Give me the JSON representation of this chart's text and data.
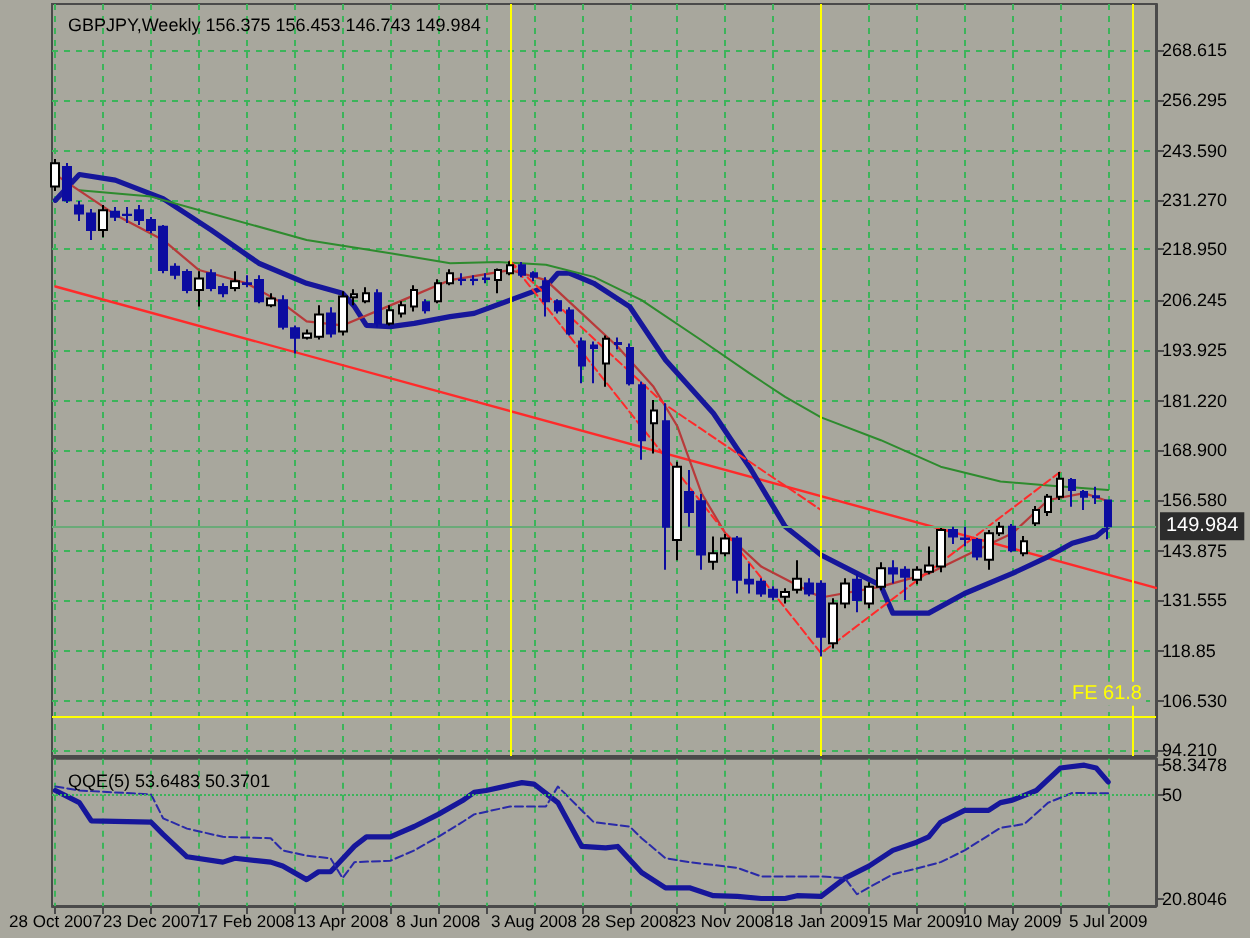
{
  "chart_data": [
    {
      "type": "candlestick",
      "title": "GBPJPY,Weekly 156.375 156.453 146.743 149.984",
      "x": [
        "2007-10-28",
        "2007-11-04",
        "2007-11-11",
        "2007-11-18",
        "2007-11-25",
        "2007-12-02",
        "2007-12-09",
        "2007-12-16",
        "2007-12-23",
        "2007-12-30",
        "2008-01-06",
        "2008-01-13",
        "2008-01-20",
        "2008-01-27",
        "2008-02-03",
        "2008-02-10",
        "2008-02-17",
        "2008-02-24",
        "2008-03-02",
        "2008-03-09",
        "2008-03-16",
        "2008-03-23",
        "2008-03-30",
        "2008-04-06",
        "2008-04-13",
        "2008-04-20",
        "2008-04-27",
        "2008-05-04",
        "2008-05-11",
        "2008-05-18",
        "2008-05-25",
        "2008-06-01",
        "2008-06-08",
        "2008-06-15",
        "2008-06-22",
        "2008-06-29",
        "2008-07-06",
        "2008-07-13",
        "2008-07-20",
        "2008-07-27",
        "2008-08-03",
        "2008-08-10",
        "2008-08-17",
        "2008-08-24",
        "2008-08-31",
        "2008-09-07",
        "2008-09-14",
        "2008-09-21",
        "2008-09-28",
        "2008-10-05",
        "2008-10-12",
        "2008-10-19",
        "2008-10-26",
        "2008-11-02",
        "2008-11-09",
        "2008-11-16",
        "2008-11-23",
        "2008-11-30",
        "2008-12-07",
        "2008-12-14",
        "2008-12-21",
        "2008-12-28",
        "2009-01-04",
        "2009-01-11",
        "2009-01-18",
        "2009-01-25",
        "2009-02-01",
        "2009-02-08",
        "2009-02-15",
        "2009-02-22",
        "2009-03-01",
        "2009-03-08",
        "2009-03-15",
        "2009-03-22",
        "2009-03-29",
        "2009-04-05",
        "2009-04-12",
        "2009-04-19",
        "2009-04-26",
        "2009-05-03",
        "2009-05-10",
        "2009-05-17",
        "2009-05-24",
        "2009-05-31",
        "2009-06-07",
        "2009-06-14",
        "2009-06-21",
        "2009-06-28",
        "2009-07-05"
      ],
      "ohlc": [
        [
          234.6,
          241.5,
          233.5,
          240.4
        ],
        [
          239.5,
          240.5,
          230.5,
          231.2
        ],
        [
          229.9,
          231.0,
          226.0,
          227.9
        ],
        [
          227.9,
          229.0,
          221.3,
          223.8
        ],
        [
          223.8,
          230.0,
          222.0,
          228.7
        ],
        [
          228.3,
          229.5,
          226.0,
          227.1
        ],
        [
          227.6,
          229.5,
          225.5,
          227.5
        ],
        [
          228.7,
          230.0,
          225.0,
          226.3
        ],
        [
          226.3,
          227.0,
          223.0,
          223.8
        ],
        [
          224.6,
          225.0,
          213.0,
          213.8
        ],
        [
          214.6,
          215.5,
          211.5,
          212.6
        ],
        [
          213.3,
          214.0,
          208.0,
          208.8
        ],
        [
          208.8,
          213.5,
          204.7,
          211.7
        ],
        [
          213.0,
          214.0,
          208.5,
          209.3
        ],
        [
          209.6,
          210.5,
          207.0,
          208.0
        ],
        [
          209.3,
          213.5,
          208.5,
          211.0
        ],
        [
          210.5,
          212.5,
          209.5,
          210.3
        ],
        [
          211.3,
          212.5,
          205.5,
          206.0
        ],
        [
          205.0,
          208.0,
          204.5,
          206.7
        ],
        [
          206.3,
          207.5,
          199.0,
          199.7
        ],
        [
          199.3,
          200.0,
          193.0,
          196.9
        ],
        [
          196.9,
          199.0,
          196.5,
          198.0
        ],
        [
          197.2,
          205.0,
          196.5,
          202.7
        ],
        [
          203.0,
          204.5,
          197.0,
          198.0
        ],
        [
          198.5,
          208.5,
          197.5,
          207.2
        ],
        [
          207.0,
          209.0,
          205.0,
          207.8
        ],
        [
          206.0,
          209.5,
          205.5,
          208.0
        ],
        [
          208.0,
          209.0,
          199.5,
          200.5
        ],
        [
          200.5,
          205.0,
          200.0,
          203.8
        ],
        [
          203.0,
          206.0,
          202.0,
          205.0
        ],
        [
          204.7,
          210.0,
          203.5,
          208.8
        ],
        [
          205.8,
          206.5,
          203.0,
          203.8
        ],
        [
          206.0,
          211.5,
          205.5,
          210.5
        ],
        [
          210.5,
          214.0,
          210.0,
          213.0
        ],
        [
          211.4,
          213.0,
          210.0,
          211.3
        ],
        [
          211.4,
          212.5,
          210.0,
          211.3
        ],
        [
          211.7,
          213.0,
          210.5,
          211.6
        ],
        [
          211.3,
          214.2,
          208.0,
          213.8
        ],
        [
          213.0,
          216.0,
          212.5,
          215.0
        ],
        [
          215.0,
          215.8,
          212.0,
          212.6
        ],
        [
          213.0,
          213.5,
          211.0,
          212.1
        ],
        [
          211.0,
          212.0,
          202.2,
          206.0
        ],
        [
          206.0,
          206.5,
          203.0,
          203.7
        ],
        [
          203.7,
          204.5,
          197.5,
          198.0
        ],
        [
          196.0,
          197.0,
          185.6,
          190.0
        ],
        [
          195.0,
          196.0,
          185.6,
          194.4
        ],
        [
          190.5,
          197.5,
          184.7,
          196.7
        ],
        [
          195.6,
          197.0,
          194.0,
          195.4
        ],
        [
          194.4,
          195.5,
          185.0,
          185.6
        ],
        [
          185.1,
          186.0,
          166.5,
          171.4
        ],
        [
          175.6,
          181.4,
          168.1,
          178.8
        ],
        [
          176.1,
          180.6,
          139.1,
          149.8
        ],
        [
          146.5,
          166.0,
          141.5,
          164.8
        ],
        [
          158.5,
          164.0,
          149.8,
          153.5
        ],
        [
          156.2,
          158.0,
          139.1,
          142.9
        ],
        [
          141.1,
          147.4,
          139.1,
          143.2
        ],
        [
          143.2,
          148.0,
          142.5,
          146.9
        ],
        [
          146.9,
          147.5,
          133.2,
          136.6
        ],
        [
          136.6,
          140.7,
          133.2,
          135.7
        ],
        [
          136.1,
          137.0,
          132.4,
          133.2
        ],
        [
          134.1,
          135.0,
          131.5,
          132.4
        ],
        [
          132.4,
          134.5,
          130.7,
          133.6
        ],
        [
          134.1,
          141.5,
          133.2,
          136.9
        ],
        [
          135.7,
          137.0,
          132.5,
          133.2
        ],
        [
          135.6,
          136.5,
          117.5,
          122.4
        ],
        [
          120.8,
          132.0,
          119.5,
          130.7
        ],
        [
          130.7,
          137.0,
          129.5,
          135.7
        ],
        [
          136.6,
          138.0,
          128.5,
          131.6
        ],
        [
          130.7,
          136.0,
          129.5,
          134.9
        ],
        [
          134.9,
          141.0,
          134.0,
          139.5
        ],
        [
          139.5,
          141.5,
          135.7,
          138.2
        ],
        [
          139.1,
          140.0,
          131.6,
          137.4
        ],
        [
          136.6,
          140.0,
          135.5,
          139.1
        ],
        [
          138.6,
          144.9,
          138.0,
          140.2
        ],
        [
          139.9,
          149.5,
          138.5,
          149.0
        ],
        [
          149.0,
          149.8,
          145.5,
          147.4
        ],
        [
          146.9,
          149.8,
          145.0,
          146.8
        ],
        [
          146.5,
          147.0,
          141.5,
          142.4
        ],
        [
          141.6,
          149.0,
          139.1,
          148.2
        ],
        [
          148.2,
          151.0,
          147.5,
          149.8
        ],
        [
          149.8,
          150.5,
          143.5,
          144.0
        ],
        [
          143.2,
          147.5,
          142.5,
          146.2
        ],
        [
          150.7,
          155.0,
          150.0,
          154.0
        ],
        [
          153.5,
          158.0,
          152.5,
          157.3
        ],
        [
          157.3,
          163.5,
          156.5,
          161.8
        ],
        [
          161.5,
          162.0,
          154.8,
          159.0
        ],
        [
          158.5,
          159.0,
          154.0,
          157.3
        ],
        [
          157.4,
          159.8,
          155.5,
          157.2
        ],
        [
          156.375,
          156.453,
          146.743,
          149.984
        ]
      ],
      "series": [
        {
          "type": "line",
          "color": "#ff2a2a",
          "x": [
            "2007-10-28",
            "2009-08-02"
          ],
          "values": [
            209.7,
            134.6
          ]
        },
        {
          "type": "line",
          "color": "#16169a",
          "x": [
            "2007-10-28",
            "2007-11-11",
            "2007-12-02",
            "2007-12-30",
            "2008-01-27",
            "2008-02-24",
            "2008-03-23",
            "2008-04-13",
            "2008-04-20",
            "2008-04-27",
            "2008-05-11",
            "2008-05-25",
            "2008-06-15",
            "2008-06-29",
            "2008-07-20",
            "2008-08-10",
            "2008-08-17",
            "2008-08-24",
            "2008-09-07",
            "2008-09-28",
            "2008-10-19",
            "2008-11-16",
            "2008-12-07",
            "2008-12-28",
            "2009-01-18",
            "2009-02-08",
            "2009-02-22",
            "2009-03-01",
            "2009-03-22",
            "2009-04-12",
            "2009-05-10",
            "2009-05-31",
            "2009-06-14",
            "2009-06-28",
            "2009-07-05"
          ],
          "values": [
            231.2,
            237.6,
            236.2,
            231.6,
            223.8,
            215.5,
            210.5,
            208.0,
            204.7,
            200.0,
            199.7,
            200.5,
            202.2,
            203.0,
            206.3,
            209.6,
            213.0,
            213.0,
            210.5,
            204.7,
            191.4,
            178.1,
            164.8,
            149.9,
            142.8,
            138.2,
            135.2,
            128.3,
            128.3,
            133.2,
            138.2,
            142.4,
            145.7,
            147.4,
            149.9
          ]
        },
        {
          "type": "line",
          "color": "#2e8b2e",
          "x": [
            "2007-11-11",
            "2007-12-23",
            "2008-01-27",
            "2008-03-23",
            "2008-05-11",
            "2008-06-15",
            "2008-07-13",
            "2008-08-10",
            "2008-09-07",
            "2008-10-05",
            "2008-11-09",
            "2008-12-07",
            "2008-12-28",
            "2009-01-18",
            "2009-02-22",
            "2009-03-29",
            "2009-05-03",
            "2009-05-31",
            "2009-07-05"
          ],
          "values": [
            233.7,
            232.1,
            227.9,
            221.3,
            218.0,
            215.5,
            215.8,
            215.1,
            212.1,
            206.3,
            196.3,
            188.1,
            182.2,
            177.1,
            171.4,
            164.8,
            161.1,
            160.1,
            159.0
          ]
        },
        {
          "type": "line",
          "color": "#b83a3a",
          "x": [
            "2007-10-28",
            "2007-12-02",
            "2007-12-30",
            "2008-01-20",
            "2008-02-17",
            "2008-03-09",
            "2008-03-23",
            "2008-04-13",
            "2008-05-11",
            "2008-06-15",
            "2008-07-20",
            "2008-08-10",
            "2008-08-31",
            "2008-09-21",
            "2008-10-12",
            "2008-10-26",
            "2008-11-09",
            "2008-11-23",
            "2008-12-14",
            "2009-01-18",
            "2009-02-22",
            "2009-03-22",
            "2009-04-19",
            "2009-05-10",
            "2009-05-31",
            "2009-06-21",
            "2009-07-05"
          ],
          "values": [
            237.6,
            227.6,
            221.3,
            213.8,
            210.5,
            205.5,
            201.0,
            200.0,
            205.0,
            211.3,
            213.8,
            211.3,
            203.0,
            194.7,
            184.7,
            174.8,
            158.2,
            148.2,
            139.9,
            132.2,
            134.9,
            138.2,
            144.0,
            148.2,
            156.5,
            158.2,
            156.2
          ]
        },
        {
          "type": "line",
          "color": "#ff2a2a",
          "line_style": "dashed",
          "x": [
            "2008-07-20",
            "2009-01-18",
            "2009-06-07"
          ],
          "values": [
            216.0,
            118.3,
            163.5
          ]
        },
        {
          "type": "line",
          "color": "#ff2a2a",
          "line_style": "dashed",
          "x": [
            "2008-07-20",
            "2008-10-19",
            "2009-01-18"
          ],
          "values": [
            216.0,
            180.2,
            154.0
          ]
        }
      ],
      "xlim": [
        "2007-10-26",
        "2009-08-02"
      ],
      "ylim": [
        92.7,
        280.1
      ],
      "xticks": [
        {
          "value": "2007-10-28",
          "label": null
        },
        {
          "value": "2007-11-25",
          "label": null
        },
        {
          "value": "2007-12-23",
          "label": null
        },
        {
          "value": "2008-01-20",
          "label": null
        },
        {
          "value": "2008-02-17",
          "label": null
        },
        {
          "value": "2008-03-16",
          "label": null
        },
        {
          "value": "2008-04-13",
          "label": null
        },
        {
          "value": "2008-05-11",
          "label": null
        },
        {
          "value": "2008-06-08",
          "label": null
        },
        {
          "value": "2008-07-06",
          "label": null
        },
        {
          "value": "2008-08-03",
          "label": null
        },
        {
          "value": "2008-08-31",
          "label": null
        },
        {
          "value": "2008-09-28",
          "label": null
        },
        {
          "value": "2008-10-26",
          "label": null
        },
        {
          "value": "2008-11-23",
          "label": null
        },
        {
          "value": "2008-12-21",
          "label": null
        },
        {
          "value": "2009-01-18",
          "label": null
        },
        {
          "value": "2009-02-15",
          "label": null
        },
        {
          "value": "2009-03-15",
          "label": null
        },
        {
          "value": "2009-04-12",
          "label": null
        },
        {
          "value": "2009-05-10",
          "label": null
        },
        {
          "value": "2009-06-07",
          "label": null
        },
        {
          "value": "2009-07-05",
          "label": null
        }
      ],
      "yticks": [
        {
          "value": 94.21,
          "label": "94.210"
        },
        {
          "value": 106.53,
          "label": "106.530"
        },
        118.85,
        131.555,
        143.875,
        {
          "value": 156.58,
          "label": "156.580"
        },
        {
          "value": 168.9,
          "label": "168.900"
        },
        {
          "value": 181.22,
          "label": "181.220"
        },
        193.925,
        206.245,
        {
          "value": 218.95,
          "label": "218.950"
        },
        {
          "value": 231.27,
          "label": "231.270"
        },
        {
          "value": 243.59,
          "label": "243.590"
        },
        256.295,
        268.615
      ],
      "tick_labels": "y",
      "grid": true,
      "ref_lines": [
        {
          "axis": "x",
          "value": "2008-07-20",
          "color": "#ffff00"
        },
        {
          "axis": "x",
          "value": "2009-01-18",
          "color": "#ffff00"
        },
        {
          "axis": "x",
          "value": "2009-07-19",
          "color": "#ffff00"
        },
        {
          "axis": "y",
          "value": 102.7,
          "label": "FE 61.8",
          "color": "#ffff00"
        },
        {
          "axis": "y",
          "value": 149.984,
          "label": "149.984",
          "color": "#6aaa78"
        }
      ]
    },
    {
      "type": "line",
      "title": "QQE(5) 53.6483 50.3701",
      "series": [
        {
          "color": "#16169a",
          "x": [
            "2007-10-28",
            "2007-11-11",
            "2007-11-18",
            "2007-12-23",
            "2007-12-30",
            "2008-01-13",
            "2008-02-03",
            "2008-02-10",
            "2008-03-02",
            "2008-03-09",
            "2008-03-23",
            "2008-03-30",
            "2008-04-06",
            "2008-04-20",
            "2008-04-27",
            "2008-05-11",
            "2008-05-25",
            "2008-06-08",
            "2008-06-22",
            "2008-06-29",
            "2008-07-06",
            "2008-07-27",
            "2008-08-03",
            "2008-08-17",
            "2008-08-31",
            "2008-09-14",
            "2008-09-21",
            "2008-10-05",
            "2008-10-19",
            "2008-11-02",
            "2008-11-16",
            "2008-11-30",
            "2008-12-14",
            "2008-12-28",
            "2009-01-04",
            "2009-01-18",
            "2009-02-01",
            "2009-02-15",
            "2009-03-01",
            "2009-03-15",
            "2009-03-22",
            "2009-03-29",
            "2009-04-12",
            "2009-04-26",
            "2009-05-03",
            "2009-05-10",
            "2009-05-24",
            "2009-06-07",
            "2009-06-21",
            "2009-06-28",
            "2009-07-05"
          ],
          "values": [
            51.2,
            47.8,
            42.7,
            42.3,
            38.9,
            32.6,
            31.1,
            32.2,
            31.1,
            30.0,
            26.2,
            28.4,
            28.4,
            35.6,
            38.2,
            38.2,
            41.1,
            44.5,
            48.3,
            50.7,
            51.2,
            53.4,
            53.0,
            47.8,
            35.5,
            35.1,
            35.5,
            28.2,
            23.9,
            23.9,
            21.7,
            21.5,
            20.9,
            20.9,
            21.7,
            21.5,
            26.6,
            30.0,
            34.4,
            36.7,
            38.2,
            42.3,
            45.6,
            45.6,
            47.8,
            48.5,
            51.2,
            57.5,
            58.3,
            57.5,
            53.6
          ]
        },
        {
          "color": "#2a2aa8",
          "line_style": "dashed",
          "x": [
            "2007-10-28",
            "2007-11-11",
            "2007-12-23",
            "2007-12-30",
            "2008-01-13",
            "2008-02-03",
            "2008-03-02",
            "2008-03-09",
            "2008-03-23",
            "2008-04-06",
            "2008-04-13",
            "2008-04-20",
            "2008-05-11",
            "2008-05-25",
            "2008-06-08",
            "2008-06-22",
            "2008-06-29",
            "2008-07-20",
            "2008-08-10",
            "2008-08-17",
            "2008-08-31",
            "2008-09-07",
            "2008-09-28",
            "2008-10-05",
            "2008-10-19",
            "2008-11-02",
            "2008-11-30",
            "2008-12-14",
            "2009-01-18",
            "2009-02-01",
            "2009-02-08",
            "2009-03-01",
            "2009-03-15",
            "2009-03-29",
            "2009-04-12",
            "2009-05-03",
            "2009-05-17",
            "2009-05-31",
            "2009-06-14",
            "2009-07-05"
          ],
          "values": [
            52.3,
            51.2,
            50.1,
            43.4,
            40.5,
            38.2,
            37.8,
            34.4,
            32.9,
            32.2,
            26.6,
            31.1,
            31.5,
            34.4,
            38.2,
            42.3,
            44.5,
            46.7,
            46.7,
            52.3,
            45.6,
            42.3,
            41.1,
            37.8,
            32.2,
            31.1,
            29.5,
            27.1,
            27.1,
            26.6,
            22.1,
            27.7,
            29.3,
            31.1,
            34.4,
            40.7,
            41.8,
            47.8,
            50.5,
            50.4
          ]
        }
      ],
      "xlim": [
        "2007-10-26",
        "2009-08-02"
      ],
      "ylim": [
        18.8,
        60.1
      ],
      "xticks": [
        {
          "value": "2007-10-28",
          "label": "28 Oct 2007"
        },
        {
          "value": "2007-11-25",
          "label": null
        },
        {
          "value": "2007-12-23",
          "label": "23 Dec 2007"
        },
        {
          "value": "2008-01-20",
          "label": null
        },
        {
          "value": "2008-02-17",
          "label": "17 Feb 2008"
        },
        {
          "value": "2008-03-16",
          "label": null
        },
        {
          "value": "2008-04-13",
          "label": "13 Apr 2008"
        },
        {
          "value": "2008-05-11",
          "label": null
        },
        {
          "value": "2008-06-08",
          "label": "8 Jun 2008"
        },
        {
          "value": "2008-07-06",
          "label": null
        },
        {
          "value": "2008-08-03",
          "label": "3 Aug 2008"
        },
        {
          "value": "2008-08-31",
          "label": null
        },
        {
          "value": "2008-09-28",
          "label": "28 Sep 2008"
        },
        {
          "value": "2008-10-26",
          "label": null
        },
        {
          "value": "2008-11-23",
          "label": "23 Nov 2008"
        },
        {
          "value": "2008-12-21",
          "label": null
        },
        {
          "value": "2009-01-18",
          "label": "18 Jan 2009"
        },
        {
          "value": "2009-02-15",
          "label": null
        },
        {
          "value": "2009-03-15",
          "label": "15 Mar 2009"
        },
        {
          "value": "2009-04-12",
          "label": null
        },
        {
          "value": "2009-05-10",
          "label": "10 May 2009"
        },
        {
          "value": "2009-06-07",
          "label": null
        },
        {
          "value": "2009-07-05",
          "label": "5 Jul 2009"
        }
      ],
      "yticks": [
        20.8046,
        50,
        58.3478
      ],
      "grid": "x",
      "ref_lines": [
        {
          "axis": "y",
          "value": 50,
          "color": "#3cb45a",
          "line_style": "dotted"
        }
      ]
    }
  ]
}
